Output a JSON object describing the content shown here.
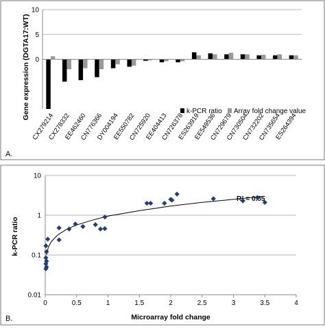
{
  "panels": [
    {
      "label": "A."
    },
    {
      "label": "B."
    }
  ],
  "chart_data": [
    {
      "type": "bar",
      "ylabel": "Gene expression (DGTA17:WT)",
      "xlabel": "",
      "ylim": [
        -10,
        10
      ],
      "yticks": [
        10,
        5,
        0
      ],
      "grid": true,
      "legend_position": "bottom-right",
      "categories": [
        "CX279214",
        "CX278332",
        "EE462460",
        "CN776366",
        "DY004194",
        "EE550782",
        "CN725920",
        "EE404413",
        "CN726378",
        "ES263919",
        "EE549536",
        "CN729679",
        "CN730504",
        "CN732202",
        "CN735654",
        "ES264394"
      ],
      "series": [
        {
          "name": "k-PCR ratio",
          "color": "#000000",
          "values": [
            -10,
            -4.5,
            -4.2,
            -3.6,
            -1.8,
            -1.5,
            -0.3,
            -0.6,
            -0.6,
            1.4,
            1.2,
            1.0,
            1.0,
            0.8,
            0.8,
            0.8
          ]
        },
        {
          "name": "Array fold change value",
          "color": "#999999",
          "values": [
            0.6,
            -2.0,
            -1.8,
            -2.0,
            -1.0,
            -1.3,
            -0.2,
            -0.4,
            -0.4,
            0.8,
            1.0,
            1.3,
            1.0,
            0.9,
            1.0,
            0.8
          ]
        }
      ]
    },
    {
      "type": "scatter",
      "ylabel": "k-PCR ratio",
      "xlabel": "Microarray fold change",
      "xlim": [
        0,
        4
      ],
      "ylim": [
        0.01,
        10
      ],
      "yscale": "log",
      "xticks": [
        "0",
        "0.5",
        "1",
        "1.5",
        "2",
        "2.5",
        "3",
        "3.5",
        "4"
      ],
      "yticks": [
        "10",
        "1",
        "0.1",
        "0.01"
      ],
      "grid": true,
      "annotation": "R² = 0.85",
      "marker_color": "#1f3d7a",
      "points": [
        {
          "x": 0.01,
          "y": 0.045
        },
        {
          "x": 0.02,
          "y": 0.05
        },
        {
          "x": 0.01,
          "y": 0.06
        },
        {
          "x": 0.02,
          "y": 0.07
        },
        {
          "x": 0.01,
          "y": 0.085
        },
        {
          "x": 0.02,
          "y": 0.12
        },
        {
          "x": 0.01,
          "y": 0.17
        },
        {
          "x": 0.04,
          "y": 0.25
        },
        {
          "x": 0.22,
          "y": 0.24
        },
        {
          "x": 0.22,
          "y": 0.48
        },
        {
          "x": 0.38,
          "y": 0.45
        },
        {
          "x": 0.48,
          "y": 0.6
        },
        {
          "x": 0.6,
          "y": 0.52
        },
        {
          "x": 0.8,
          "y": 0.58
        },
        {
          "x": 0.88,
          "y": 0.45
        },
        {
          "x": 0.95,
          "y": 0.46
        },
        {
          "x": 0.95,
          "y": 0.9
        },
        {
          "x": 1.62,
          "y": 2.0
        },
        {
          "x": 1.68,
          "y": 2.0
        },
        {
          "x": 1.9,
          "y": 2.0
        },
        {
          "x": 2.0,
          "y": 2.5
        },
        {
          "x": 2.02,
          "y": 2.4
        },
        {
          "x": 2.1,
          "y": 3.4
        },
        {
          "x": 2.68,
          "y": 2.6
        },
        {
          "x": 3.15,
          "y": 2.3
        },
        {
          "x": 3.38,
          "y": 2.8
        },
        {
          "x": 3.5,
          "y": 2.1
        }
      ],
      "trendline": {
        "type": "log",
        "points": [
          {
            "x": 0.02,
            "y": 0.1
          },
          {
            "x": 0.05,
            "y": 0.16
          },
          {
            "x": 0.1,
            "y": 0.22
          },
          {
            "x": 0.2,
            "y": 0.32
          },
          {
            "x": 0.35,
            "y": 0.45
          },
          {
            "x": 0.5,
            "y": 0.57
          },
          {
            "x": 0.75,
            "y": 0.75
          },
          {
            "x": 1.0,
            "y": 0.95
          },
          {
            "x": 1.5,
            "y": 1.3
          },
          {
            "x": 2.0,
            "y": 1.7
          },
          {
            "x": 2.5,
            "y": 2.1
          },
          {
            "x": 3.0,
            "y": 2.5
          },
          {
            "x": 3.5,
            "y": 3.0
          }
        ]
      }
    }
  ]
}
